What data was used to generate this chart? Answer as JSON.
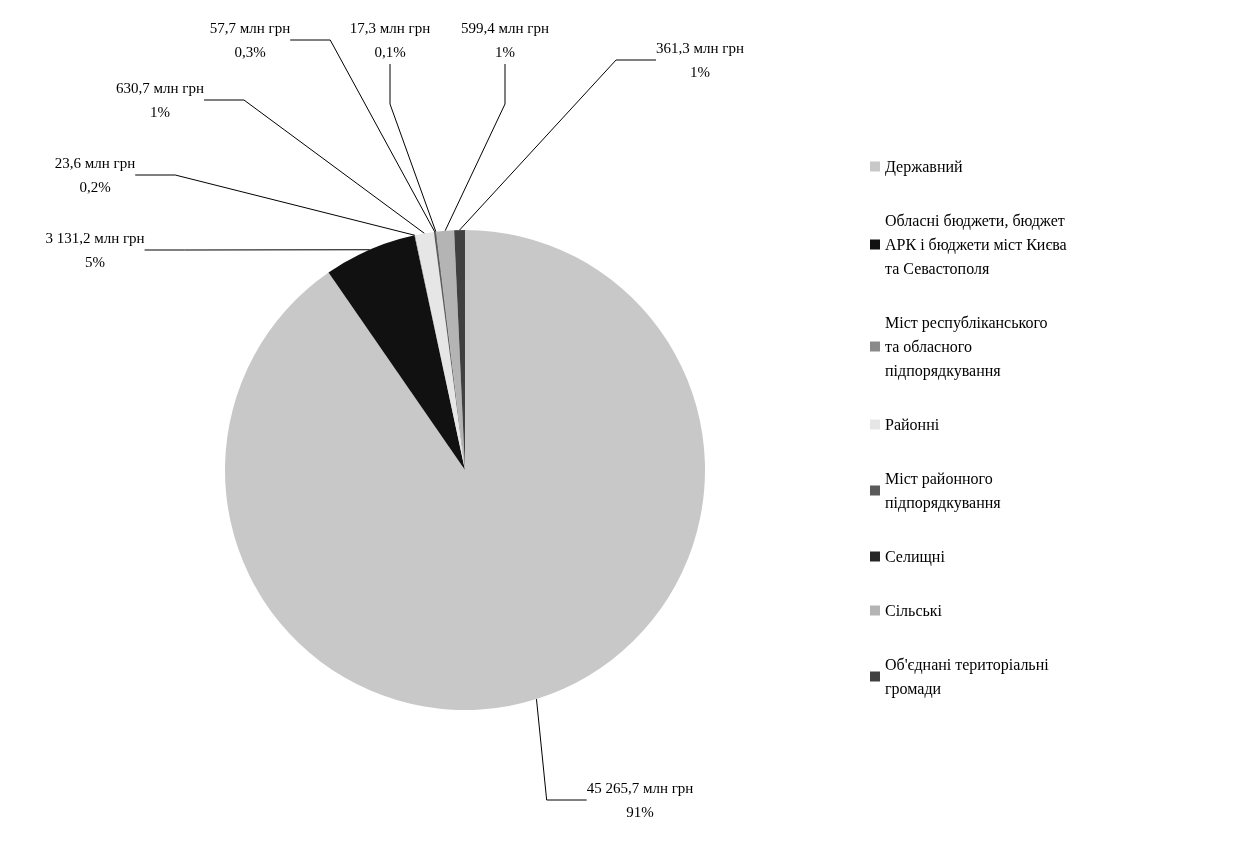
{
  "chart_data": {
    "type": "pie",
    "categories": [
      "Державний",
      "Обласні бюджети, бюджет АРК і бюджети міст Києва та Севастополя",
      "Міст республіканського та обласного підпорядкування",
      "Районні",
      "Міст районного підпорядкування",
      "Селищні",
      "Сільські",
      "Об'єднані територіальні громади"
    ],
    "values": [
      45265.7,
      3131.2,
      23.6,
      630.7,
      57.7,
      17.3,
      599.4,
      361.3
    ],
    "value_labels": [
      "45 265,7 млн грн\n91%",
      "3 131,2 млн грн\n5%",
      "23,6 млн грн\n0,2%",
      "630,7 млн грн\n1%",
      "57,7 млн грн\n0,3%",
      "17,3 млн грн\n0,1%",
      "599,4 млн грн\n1%",
      "361,3 млн грн\n1%"
    ],
    "colors": [
      "#c8c8c8",
      "#111111",
      "#8a8a8a",
      "#e6e6e6",
      "#5a5a5a",
      "#262626",
      "#b4b4b4",
      "#404040"
    ],
    "legend": "right"
  }
}
